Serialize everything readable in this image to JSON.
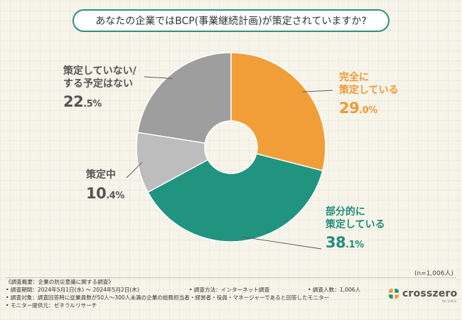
{
  "chart_data": {
    "type": "donut",
    "title": "あなたの企業ではBCP(事業継続計画)が策定されていますか?",
    "categories": [
      "完全に策定している",
      "部分的に策定している",
      "策定中",
      "策定していない/する予定はない"
    ],
    "values": [
      29.0,
      38.1,
      10.4,
      22.5
    ],
    "colors": [
      "#f19e38",
      "#219480",
      "#bdbdbd",
      "#9e9e9e"
    ],
    "labels": [
      {
        "name_lines": [
          "完全に",
          "策定している"
        ],
        "int": "29",
        "dec": ".0%"
      },
      {
        "name_lines": [
          "部分的に",
          "策定している"
        ],
        "int": "38",
        "dec": ".1%"
      },
      {
        "name_lines": [
          "策定中"
        ],
        "int": "10",
        "dec": ".4%"
      },
      {
        "name_lines": [
          "策定していない/",
          "する予定はない"
        ],
        "int": "22",
        "dec": ".5%"
      }
    ],
    "sample_size": "(n=1,006人)"
  },
  "footer": {
    "heading": "《調査概要：企業の防災意識に関する調査》",
    "period": "• 調査期間：2024年5月1日(水) ～ 2024年5月2日(木)",
    "method": "• 調査方法：インターネット調査",
    "count": "• 調査人数：1,006人",
    "target": "• 調査対象：調査回答時に従業員数が50人〜300人未満の企業の総務担当者・経営者・役員・マネージャーであると回答したモニター",
    "provider": "• モニター提供元：ゼネラルリサーチ"
  },
  "logo": {
    "name": "crosszero",
    "sub": "for U.N.S."
  },
  "colors": {
    "accent": "#2e8f7c",
    "orange": "#f19e38",
    "green": "#219480"
  }
}
